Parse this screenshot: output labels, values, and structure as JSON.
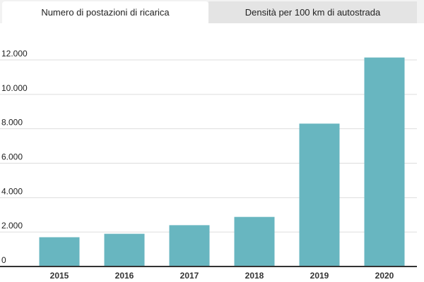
{
  "tabs": [
    {
      "label": "Numero di postazioni di ricarica",
      "active": true
    },
    {
      "label": "Densità per 100 km di autostrada",
      "active": false
    }
  ],
  "colors": {
    "bar": "#68b6c0",
    "grid": "#dddddd",
    "axis": "#333333"
  },
  "chart_data": {
    "type": "bar",
    "title": "Numero di postazioni di ricarica",
    "categories": [
      "2015",
      "2016",
      "2017",
      "2018",
      "2019",
      "2020"
    ],
    "values": [
      1700,
      1900,
      2400,
      2880,
      8300,
      12140
    ],
    "ylim": [
      0,
      12000
    ],
    "yticks": [
      0,
      2000,
      4000,
      6000,
      8000,
      10000,
      12000
    ],
    "ytick_labels": [
      "0",
      "2.000",
      "4.000",
      "6.000",
      "8.000",
      "10.000",
      "12.000"
    ],
    "grid": true,
    "xlabel": "",
    "ylabel": ""
  }
}
